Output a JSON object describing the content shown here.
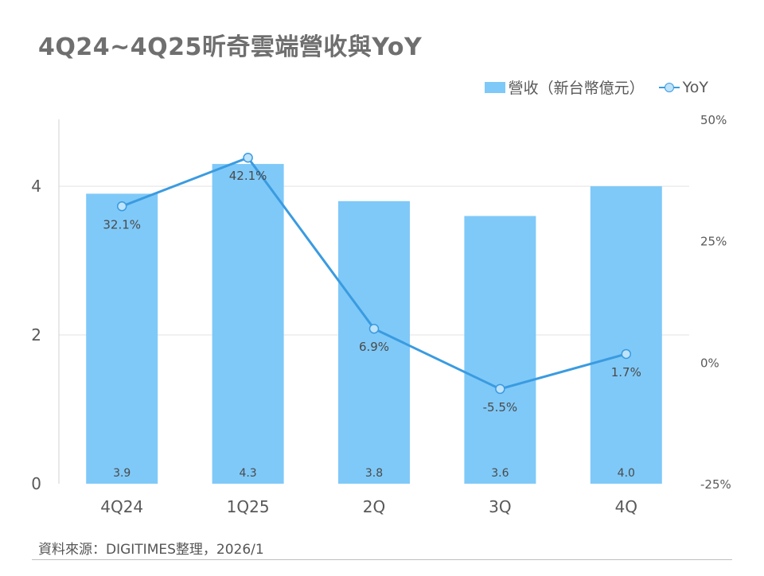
{
  "title": "4Q24~4Q25昕奇雲端營收與YoY",
  "source": "資料來源：DIGITIMES整理，2026/1",
  "colors": {
    "bar": "#7fc9f8",
    "line": "#3a9be0",
    "marker_fill": "#bfe3fb",
    "grid": "#e3e3e3",
    "axis_text": "#595959"
  },
  "chart_data": {
    "type": "bar",
    "categories": [
      "4Q24",
      "1Q25",
      "2Q",
      "3Q",
      "4Q"
    ],
    "series": [
      {
        "name": "營收（新台幣億元）",
        "type": "bar",
        "axis": "left",
        "values": [
          3.9,
          4.3,
          3.8,
          3.6,
          4.0
        ],
        "labels": [
          "3.9",
          "4.3",
          "3.8",
          "3.6",
          "4.0"
        ]
      },
      {
        "name": "YoY",
        "type": "line",
        "axis": "right",
        "values": [
          32.1,
          42.1,
          6.9,
          -5.5,
          1.7
        ],
        "labels": [
          "32.1%",
          "42.1%",
          "6.9%",
          "-5.5%",
          "1.7%"
        ]
      }
    ],
    "left_axis": {
      "min": 0,
      "max": 4.9,
      "ticks": [
        0,
        2,
        4
      ],
      "tick_labels": [
        "0",
        "2",
        "4"
      ]
    },
    "right_axis": {
      "min": -25,
      "max": 50,
      "ticks": [
        -25,
        0,
        25,
        50
      ],
      "tick_labels": [
        "-25%",
        "0%",
        "25%",
        "50%"
      ]
    },
    "grid": true,
    "legend": "top-right"
  }
}
